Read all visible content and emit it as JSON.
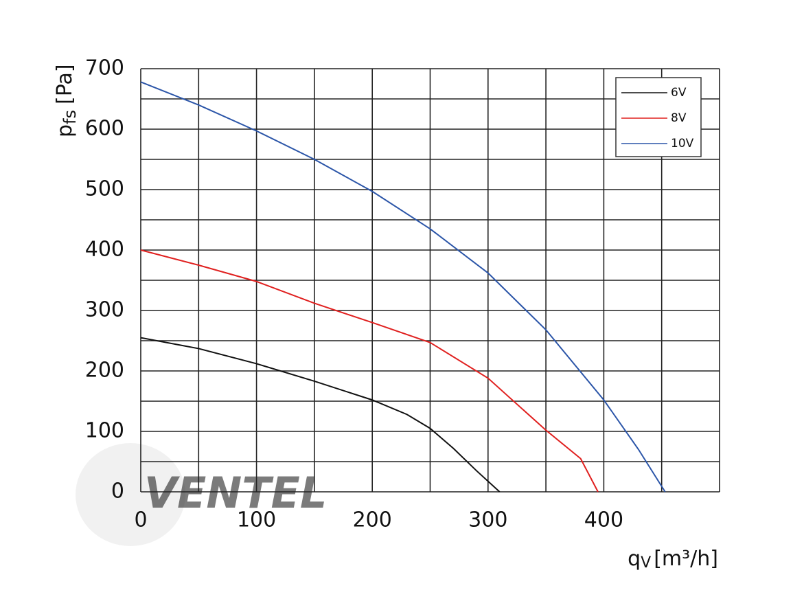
{
  "chart_data": {
    "type": "line",
    "x_label": "q",
    "x_label_sub": "V",
    "x_label_unit": "[m³/h]",
    "y_label": "p",
    "y_label_sub": "fs",
    "y_label_unit": "[Pa]",
    "watermark": "VENTEL",
    "xlim": [
      0,
      500
    ],
    "ylim": [
      0,
      700
    ],
    "xticks": [
      0,
      100,
      200,
      300,
      400
    ],
    "yticks": [
      0,
      100,
      200,
      300,
      400,
      500,
      600,
      700
    ],
    "x_minor_grid": [
      50,
      150,
      250,
      350,
      450,
      500
    ],
    "y_minor_grid": [
      50,
      150,
      250,
      350,
      450,
      550,
      650
    ],
    "grid": true,
    "legend": "upper right",
    "series": [
      {
        "name": "6V",
        "color": "#111111",
        "x": [
          0,
          50,
          100,
          150,
          200,
          230,
          250,
          270,
          290,
          310
        ],
        "values": [
          255,
          237,
          212,
          183,
          152,
          128,
          105,
          72,
          35,
          0
        ]
      },
      {
        "name": "8V",
        "color": "#e0201f",
        "x": [
          0,
          50,
          100,
          150,
          200,
          250,
          300,
          350,
          380,
          395
        ],
        "values": [
          400,
          375,
          348,
          312,
          280,
          247,
          188,
          102,
          55,
          0
        ]
      },
      {
        "name": "10V",
        "color": "#2b55a8",
        "x": [
          0,
          50,
          100,
          150,
          200,
          250,
          300,
          350,
          400,
          430,
          453
        ],
        "values": [
          678,
          640,
          597,
          550,
          497,
          435,
          362,
          268,
          152,
          70,
          0
        ]
      }
    ]
  }
}
